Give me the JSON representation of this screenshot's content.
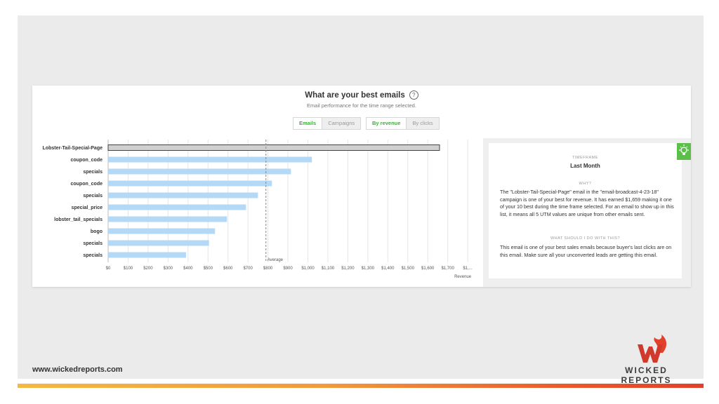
{
  "footer": {
    "url": "www.wickedreports.com",
    "brand": "WICKED REPORTS"
  },
  "panel": {
    "title": "What are your best emails",
    "help_icon": "question-icon",
    "subtitle": "Email performance for the time range selected.",
    "toggle_type": [
      "Emails",
      "Campaigns"
    ],
    "toggle_type_active": "Emails",
    "toggle_metric": [
      "By revenue",
      "By clicks"
    ],
    "toggle_metric_active": "By revenue"
  },
  "chart_data": {
    "type": "bar",
    "orientation": "horizontal",
    "categories": [
      "Lobster-Tail-Special-Page",
      "coupon_code",
      "specials",
      "coupon_code",
      "specials",
      "special_price",
      "lobster_tail_specials",
      "bogo",
      "specials",
      "specials"
    ],
    "values": [
      1659,
      1020,
      915,
      820,
      750,
      690,
      595,
      535,
      505,
      390
    ],
    "highlighted_index": 0,
    "xlabel": "Revenue",
    "x_ticks": [
      "$0",
      "$100",
      "$200",
      "$300",
      "$400",
      "$500",
      "$600",
      "$700",
      "$800",
      "$900",
      "$1,000",
      "$1,100",
      "$1,200",
      "$1,300",
      "$1,400",
      "$1,500",
      "$1,600",
      "$1,700",
      "$1,..."
    ],
    "xlim": [
      0,
      1800
    ],
    "average": {
      "label": "Average",
      "value": 790
    },
    "colors": {
      "bar": "#b3d9f7",
      "highlight": "#d0d0d0",
      "highlight_border": "#444444"
    },
    "grid": true
  },
  "side": {
    "icon": "lightbulb-icon",
    "timeframe_label": "TIMEFRAME",
    "timeframe_value": "Last Month",
    "why_label": "WHY?",
    "why_text": "The \"Lobster-Tail-Special-Page\" email in the \"email-broadcast-4-23-18\" campaign is one of your best for revenue. It has earned $1,659 making it one of your 10 best during the time frame selected. For an email to show up in this list, it means all 5 UTM values are unique from other emails sent.",
    "todo_label": "WHAT SHOULD I DO WITH THIS?",
    "todo_text": "This email is one of your best sales emails because buyer's last clicks are on this email. Make sure all your unconverted leads are getting this email."
  },
  "colors": {
    "accent_green": "#3cae3c",
    "bulb_green": "#5bbf4a",
    "brand_red": "#e2402a"
  }
}
